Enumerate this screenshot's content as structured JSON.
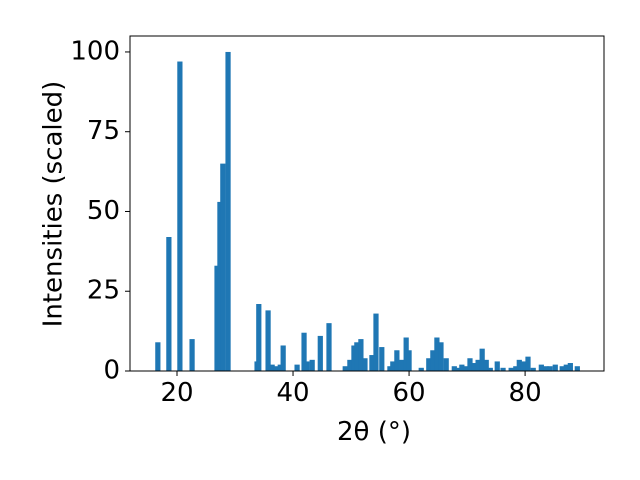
{
  "chart_data": {
    "type": "bar",
    "xlabel": "2θ (°)",
    "ylabel": "Intensities (scaled)",
    "color": "#1f77b4",
    "x": [
      16.7,
      18.6,
      20.5,
      22.6,
      26.9,
      27.4,
      27.9,
      28.8,
      33.8,
      34.1,
      35.7,
      36.4,
      37.1,
      37.8,
      38.3,
      40.7,
      41.9,
      42.4,
      43.3,
      44.7,
      46.2,
      49,
      49.8,
      50.5,
      51,
      51.7,
      52.4,
      53.6,
      54.3,
      55.3,
      56.7,
      57.2,
      57.9,
      58.8,
      59.5,
      60,
      62.1,
      63.4,
      64.1,
      64.8,
      65.5,
      66.4,
      67.8,
      68.4,
      69.1,
      69.8,
      70.5,
      71.2,
      71.9,
      72.6,
      73.3,
      74,
      75.2,
      76.2,
      77.6,
      78.4,
      79,
      79.7,
      80.5,
      81.4,
      82.8,
      83.6,
      84.3,
      85.2,
      86.4,
      87.1,
      87.8,
      89
    ],
    "values": [
      9,
      42,
      97,
      10,
      33,
      53,
      65,
      100,
      3,
      21,
      19,
      2,
      1.5,
      2,
      8,
      2,
      12,
      3,
      3.5,
      11,
      15,
      1.5,
      3.5,
      8,
      9,
      10,
      4,
      5,
      18,
      7.5,
      1.5,
      3,
      6.5,
      3.5,
      10.5,
      6.5,
      1,
      4,
      6.5,
      10.5,
      9,
      4,
      1.5,
      1,
      2,
      1.5,
      4,
      2.5,
      3.5,
      7,
      3.5,
      1,
      3,
      1,
      1,
      1.5,
      3.5,
      3,
      4.5,
      1,
      2,
      1.5,
      1.5,
      2,
      1.5,
      2,
      2.5,
      1.5
    ],
    "xlim": [
      11.9,
      93.6
    ],
    "ylim": [
      0,
      105
    ],
    "xticks": [
      20,
      40,
      60,
      80
    ],
    "yticks": [
      0,
      25,
      50,
      75,
      100
    ]
  }
}
